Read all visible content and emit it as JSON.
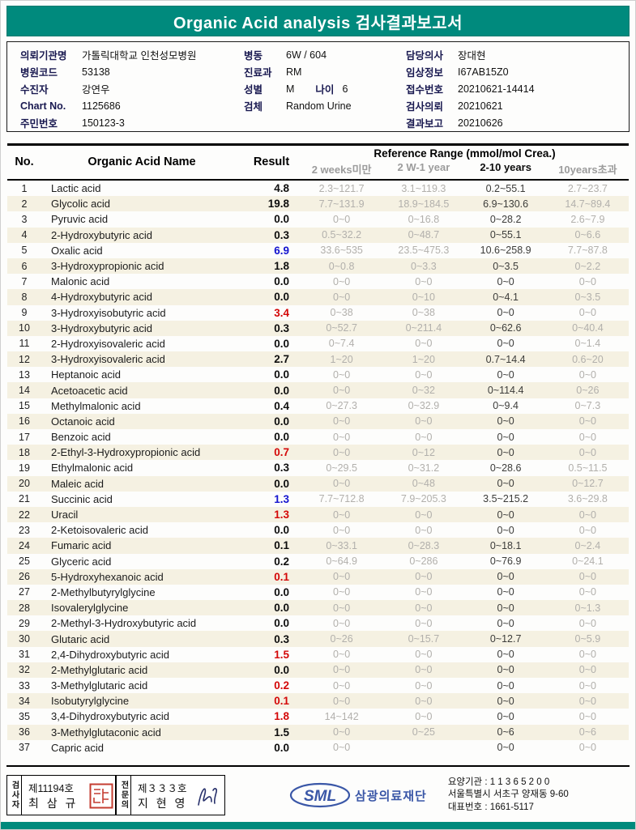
{
  "title": "Organic Acid analysis 검사결과보고서",
  "theme": {
    "banner_teal": "#008A7D",
    "alt_row_cream": "#F5F1E2",
    "range_gray": "#B2B0AC",
    "result_red": "#D40808",
    "result_blue": "#1414CF",
    "logo_blue": "#3A57A7"
  },
  "info": {
    "col1": [
      {
        "label": "의뢰기관명",
        "value": "가톨릭대학교 인천성모병원"
      },
      {
        "label": "병원코드",
        "value": "53138"
      },
      {
        "label": "수진자",
        "value": "강연우"
      },
      {
        "label": "Chart No.",
        "value": "1125686"
      },
      {
        "label": "주민번호",
        "value": "150123-3"
      }
    ],
    "col2": [
      {
        "label": "병동",
        "value": "6W / 604"
      },
      {
        "label": "진료과",
        "value": "RM"
      },
      {
        "label": "성별",
        "value": "M",
        "label2": "나이",
        "value2": "6"
      },
      {
        "label": "검체",
        "value": "Random Urine"
      }
    ],
    "col3": [
      {
        "label": "담당의사",
        "value": "장대현"
      },
      {
        "label": "임상정보",
        "value": "I67AB15Z0"
      },
      {
        "label": "접수번호",
        "value": "20210621-14414"
      },
      {
        "label": "검사의뢰",
        "value": "20210621"
      },
      {
        "label": "결과보고",
        "value": "20210626"
      }
    ]
  },
  "table": {
    "header": {
      "no": "No.",
      "name": "Organic Acid Name",
      "result": "Result",
      "ref": "Reference Range (mmol/mol Crea.)",
      "sub": [
        "2 weeks미만",
        "2 W-1 year",
        "2-10 years",
        "10years초과"
      ]
    },
    "rows": [
      {
        "no": 1,
        "name": "Lactic acid",
        "result": "4.8",
        "color": "black",
        "ranges": [
          "2.3~121.7",
          "3.1~119.3",
          "0.2~55.1",
          "2.7~23.7"
        ]
      },
      {
        "no": 2,
        "name": "Glycolic acid",
        "result": "19.8",
        "color": "black",
        "ranges": [
          "7.7~131.9",
          "18.9~184.5",
          "6.9~130.6",
          "14.7~89.4"
        ]
      },
      {
        "no": 3,
        "name": "Pyruvic acid",
        "result": "0.0",
        "color": "black",
        "ranges": [
          "0~0",
          "0~16.8",
          "0~28.2",
          "2.6~7.9"
        ]
      },
      {
        "no": 4,
        "name": "2-Hydroxybutyric acid",
        "result": "0.3",
        "color": "black",
        "ranges": [
          "0.5~32.2",
          "0~48.7",
          "0~55.1",
          "0~6.6"
        ]
      },
      {
        "no": 5,
        "name": "Oxalic acid",
        "result": "6.9",
        "color": "blue",
        "ranges": [
          "33.6~535",
          "23.5~475.3",
          "10.6~258.9",
          "7.7~87.8"
        ]
      },
      {
        "no": 6,
        "name": "3-Hydroxypropionic acid",
        "result": "1.8",
        "color": "black",
        "ranges": [
          "0~0.8",
          "0~3.3",
          "0~3.5",
          "0~2.2"
        ]
      },
      {
        "no": 7,
        "name": "Malonic acid",
        "result": "0.0",
        "color": "black",
        "ranges": [
          "0~0",
          "0~0",
          "0~0",
          "0~0"
        ]
      },
      {
        "no": 8,
        "name": "4-Hydroxybutyric acid",
        "result": "0.0",
        "color": "black",
        "ranges": [
          "0~0",
          "0~10",
          "0~4.1",
          "0~3.5"
        ]
      },
      {
        "no": 9,
        "name": "3-Hydroxyisobutyric acid",
        "result": "3.4",
        "color": "red",
        "ranges": [
          "0~38",
          "0~38",
          "0~0",
          "0~0"
        ]
      },
      {
        "no": 10,
        "name": "3-Hydroxybutyric acid",
        "result": "0.3",
        "color": "black",
        "ranges": [
          "0~52.7",
          "0~211.4",
          "0~62.6",
          "0~40.4"
        ]
      },
      {
        "no": 11,
        "name": "2-Hydroxyisovaleric acid",
        "result": "0.0",
        "color": "black",
        "ranges": [
          "0~7.4",
          "0~0",
          "0~0",
          "0~1.4"
        ]
      },
      {
        "no": 12,
        "name": "3-Hydroxyisovaleric acid",
        "result": "2.7",
        "color": "black",
        "ranges": [
          "1~20",
          "1~20",
          "0.7~14.4",
          "0.6~20"
        ]
      },
      {
        "no": 13,
        "name": "Heptanoic acid",
        "result": "0.0",
        "color": "black",
        "ranges": [
          "0~0",
          "0~0",
          "0~0",
          "0~0"
        ]
      },
      {
        "no": 14,
        "name": "Acetoacetic acid",
        "result": "0.0",
        "color": "black",
        "ranges": [
          "0~0",
          "0~32",
          "0~114.4",
          "0~26"
        ]
      },
      {
        "no": 15,
        "name": "Methylmalonic acid",
        "result": "0.4",
        "color": "black",
        "ranges": [
          "0~27.3",
          "0~32.9",
          "0~9.4",
          "0~7.3"
        ]
      },
      {
        "no": 16,
        "name": "Octanoic acid",
        "result": "0.0",
        "color": "black",
        "ranges": [
          "0~0",
          "0~0",
          "0~0",
          "0~0"
        ]
      },
      {
        "no": 17,
        "name": "Benzoic acid",
        "result": "0.0",
        "color": "black",
        "ranges": [
          "0~0",
          "0~0",
          "0~0",
          "0~0"
        ]
      },
      {
        "no": 18,
        "name": "2-Ethyl-3-Hydroxypropionic acid",
        "result": "0.7",
        "color": "red",
        "ranges": [
          "0~0",
          "0~12",
          "0~0",
          "0~0"
        ]
      },
      {
        "no": 19,
        "name": "Ethylmalonic acid",
        "result": "0.3",
        "color": "black",
        "ranges": [
          "0~29.5",
          "0~31.2",
          "0~28.6",
          "0.5~11.5"
        ]
      },
      {
        "no": 20,
        "name": "Maleic acid",
        "result": "0.0",
        "color": "black",
        "ranges": [
          "0~0",
          "0~48",
          "0~0",
          "0~12.7"
        ]
      },
      {
        "no": 21,
        "name": "Succinic acid",
        "result": "1.3",
        "color": "blue",
        "ranges": [
          "7.7~712.8",
          "7.9~205.3",
          "3.5~215.2",
          "3.6~29.8"
        ]
      },
      {
        "no": 22,
        "name": "Uracil",
        "result": "1.3",
        "color": "red",
        "ranges": [
          "0~0",
          "0~0",
          "0~0",
          "0~0"
        ]
      },
      {
        "no": 23,
        "name": "2-Ketoisovaleric acid",
        "result": "0.0",
        "color": "black",
        "ranges": [
          "0~0",
          "0~0",
          "0~0",
          "0~0"
        ]
      },
      {
        "no": 24,
        "name": "Fumaric acid",
        "result": "0.1",
        "color": "black",
        "ranges": [
          "0~33.1",
          "0~28.3",
          "0~18.1",
          "0~2.4"
        ]
      },
      {
        "no": 25,
        "name": "Glyceric acid",
        "result": "0.2",
        "color": "black",
        "ranges": [
          "0~64.9",
          "0~286",
          "0~76.9",
          "0~24.1"
        ]
      },
      {
        "no": 26,
        "name": "5-Hydroxyhexanoic acid",
        "result": "0.1",
        "color": "red",
        "ranges": [
          "0~0",
          "0~0",
          "0~0",
          "0~0"
        ]
      },
      {
        "no": 27,
        "name": "2-Methylbutyrylglycine",
        "result": "0.0",
        "color": "black",
        "ranges": [
          "0~0",
          "0~0",
          "0~0",
          "0~0"
        ]
      },
      {
        "no": 28,
        "name": "Isovalerylglycine",
        "result": "0.0",
        "color": "black",
        "ranges": [
          "0~0",
          "0~0",
          "0~0",
          "0~1.3"
        ]
      },
      {
        "no": 29,
        "name": "2-Methyl-3-Hydroxybutyric acid",
        "result": "0.0",
        "color": "black",
        "ranges": [
          "0~0",
          "0~0",
          "0~0",
          "0~0"
        ]
      },
      {
        "no": 30,
        "name": "Glutaric acid",
        "result": "0.3",
        "color": "black",
        "ranges": [
          "0~26",
          "0~15.7",
          "0~12.7",
          "0~5.9"
        ]
      },
      {
        "no": 31,
        "name": "2,4-Dihydroxybutyric acid",
        "result": "1.5",
        "color": "red",
        "ranges": [
          "0~0",
          "0~0",
          "0~0",
          "0~0"
        ]
      },
      {
        "no": 32,
        "name": "2-Methylglutaric acid",
        "result": "0.0",
        "color": "black",
        "ranges": [
          "0~0",
          "0~0",
          "0~0",
          "0~0"
        ]
      },
      {
        "no": 33,
        "name": "3-Methylglutaric acid",
        "result": "0.2",
        "color": "red",
        "ranges": [
          "0~0",
          "0~0",
          "0~0",
          "0~0"
        ]
      },
      {
        "no": 34,
        "name": "Isobutyrylglycine",
        "result": "0.1",
        "color": "red",
        "ranges": [
          "0~0",
          "0~0",
          "0~0",
          "0~0"
        ]
      },
      {
        "no": 35,
        "name": "3,4-Dihydroxybutyric acid",
        "result": "1.8",
        "color": "red",
        "ranges": [
          "14~142",
          "0~0",
          "0~0",
          "0~0"
        ]
      },
      {
        "no": 36,
        "name": "3-Methylglutaconic acid",
        "result": "1.5",
        "color": "black",
        "ranges": [
          "0~0",
          "0~25",
          "0~6",
          "0~6"
        ]
      },
      {
        "no": 37,
        "name": "Capric acid",
        "result": "0.0",
        "color": "black",
        "ranges": [
          "0~0",
          "",
          "0~0",
          "0~0"
        ]
      }
    ]
  },
  "footer": {
    "examiner": {
      "role": "검사자",
      "cert_no": "제11194호",
      "name": "최 삼 규"
    },
    "specialist": {
      "role": "전문의",
      "cert_no": "제３３３호",
      "name": "지 현 영"
    },
    "org_logo": "SML",
    "org_name": "삼광의료재단",
    "contact_line1": "요양기관 : 1 1 3 6 5 2 0 0",
    "contact_line2": "서울특별시 서초구 양재동 9-60",
    "contact_line3": "대표번호 : 1661-5117"
  }
}
